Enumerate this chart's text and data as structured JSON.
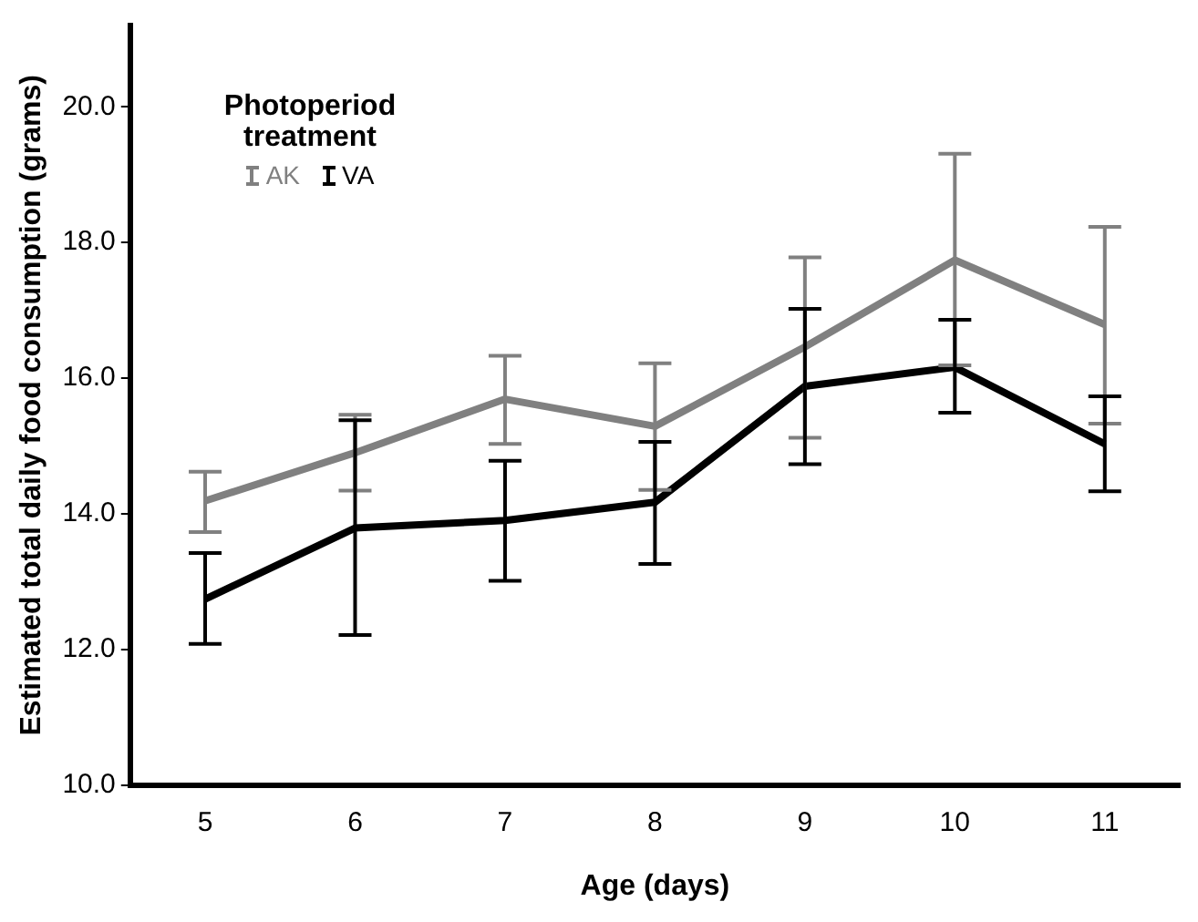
{
  "chart_data": {
    "type": "line",
    "xlabel": "Age (days)",
    "ylabel": "Estimated total daily food consumption (grams)",
    "legend_title": "Photoperiod treatment",
    "categories": [
      "5",
      "6",
      "7",
      "8",
      "9",
      "10",
      "11"
    ],
    "series": [
      {
        "name": "AK",
        "color": "#808080",
        "values": [
          14.19,
          14.9,
          15.69,
          15.29,
          16.46,
          17.74,
          16.79
        ],
        "errors": [
          [
            13.73,
            14.62
          ],
          [
            14.34,
            15.46
          ],
          [
            15.03,
            16.33
          ],
          [
            14.35,
            16.22
          ],
          [
            15.12,
            17.78
          ],
          [
            16.19,
            19.31
          ],
          [
            15.33,
            18.23
          ]
        ]
      },
      {
        "name": "VA",
        "color": "#000000",
        "values": [
          12.74,
          13.79,
          13.9,
          14.17,
          15.88,
          16.16,
          15.03
        ],
        "errors": [
          [
            12.08,
            13.42
          ],
          [
            12.21,
            15.38
          ],
          [
            13.01,
            14.78
          ],
          [
            13.26,
            15.06
          ],
          [
            14.73,
            17.02
          ],
          [
            15.49,
            16.86
          ],
          [
            14.33,
            15.73
          ]
        ]
      }
    ],
    "ylim": [
      10,
      21.2
    ],
    "yticks": [
      {
        "value": 10,
        "label": "10.0"
      },
      {
        "value": 12,
        "label": "12.0"
      },
      {
        "value": 14,
        "label": "14.0"
      },
      {
        "value": 16,
        "label": "16.0"
      },
      {
        "value": 18,
        "label": "18.0"
      },
      {
        "value": 20,
        "label": "20.0"
      }
    ],
    "grid": false,
    "legend": "top left",
    "marker": "none",
    "line_style": "solid"
  }
}
